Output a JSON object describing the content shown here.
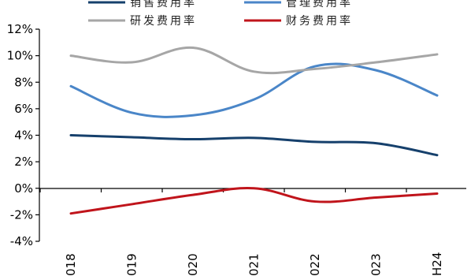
{
  "chart_data": {
    "type": "line",
    "title": "",
    "xlabel": "",
    "ylabel": "",
    "categories": [
      "018",
      "019",
      "020",
      "021",
      "022",
      "023",
      "H24"
    ],
    "y_ticks": [
      "12%",
      "10%",
      "8%",
      "6%",
      "4%",
      "2%",
      "0%",
      "-2%",
      "-4%"
    ],
    "ylim": [
      -4,
      12
    ],
    "grid": false,
    "legend_position": "top",
    "series": [
      {
        "name": "销售费用率",
        "color": "#16406c",
        "values": [
          4.0,
          3.85,
          3.7,
          3.8,
          3.5,
          3.4,
          2.5
        ]
      },
      {
        "name": "管理费用率",
        "color": "#4a86c8",
        "values": [
          7.7,
          5.7,
          5.5,
          6.7,
          9.2,
          8.9,
          7.0
        ]
      },
      {
        "name": "研发费用率",
        "color": "#a6a6a6",
        "values": [
          10.0,
          9.5,
          10.6,
          8.8,
          9.0,
          9.5,
          10.1
        ]
      },
      {
        "name": "财务费用率",
        "color": "#c0141b",
        "values": [
          -1.9,
          -1.2,
          -0.5,
          0.0,
          -1.0,
          -0.7,
          -0.4
        ]
      }
    ]
  }
}
